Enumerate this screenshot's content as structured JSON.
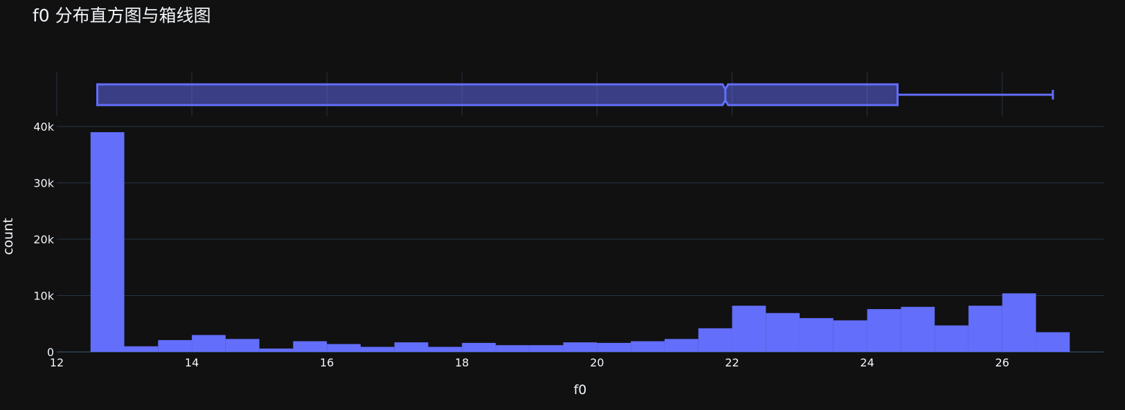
{
  "chart_data": {
    "title": "f0 分布直方图与箱线图",
    "type": "histogram+box",
    "xlabel": "f0",
    "ylabel": "count",
    "xlim": [
      12,
      27.5
    ],
    "ylim": [
      0,
      40000
    ],
    "xticks": [
      "12",
      "14",
      "16",
      "18",
      "20",
      "22",
      "24",
      "26"
    ],
    "yticks": [
      "0",
      "10k",
      "20k",
      "30k",
      "40k"
    ],
    "bin_width": 0.5,
    "bins_start": [
      12.5,
      13.0,
      13.5,
      14.0,
      14.5,
      15.0,
      15.5,
      16.0,
      16.5,
      17.0,
      17.5,
      18.0,
      18.5,
      19.0,
      19.5,
      20.0,
      20.5,
      21.0,
      21.5,
      22.0,
      22.5,
      23.0,
      23.5,
      24.0,
      24.5,
      25.0,
      25.5,
      26.0,
      26.5
    ],
    "counts": [
      39000,
      1000,
      2100,
      3000,
      2300,
      600,
      1900,
      1400,
      900,
      1700,
      900,
      1600,
      1200,
      1200,
      1700,
      1600,
      1900,
      2300,
      4200,
      8200,
      6900,
      6000,
      5600,
      7600,
      8000,
      4700,
      8200,
      10400,
      3500
    ],
    "box": {
      "lower_whisker": 12.6,
      "q1": 12.6,
      "median": 21.9,
      "q3": 24.45,
      "upper_whisker": 26.75,
      "notched": true
    },
    "grid": true,
    "colors": {
      "bar": "#636efa",
      "box_line": "#636efa",
      "box_fill": "#636efa",
      "background": "#111111",
      "grid": "#283442",
      "text": "#f2f5fa"
    }
  }
}
